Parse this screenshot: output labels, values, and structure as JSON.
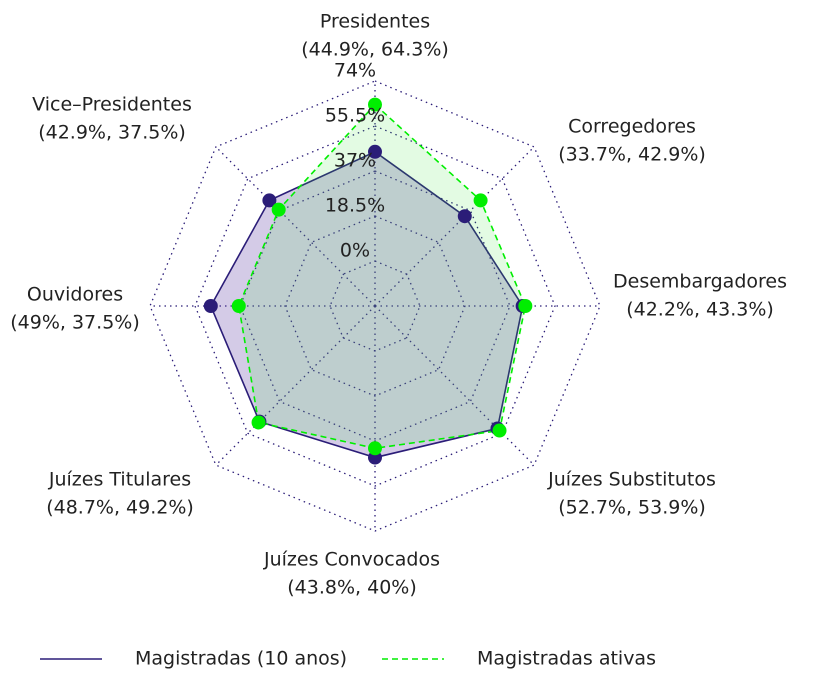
{
  "chart_data": {
    "type": "radar",
    "categories": [
      "Presidentes",
      "Corregedores",
      "Desembargadores",
      "Juízes Substitutos",
      "Juízes Convocados",
      "Juízes Titulares",
      "Ouvidores",
      "Vice–Presidentes"
    ],
    "point_labels": [
      "(44.9%, 64.3%)",
      "(33.7%, 42.9%)",
      "(42.2%, 43.3%)",
      "(52.7%, 53.9%)",
      "(43.8%, 40%)",
      "(48.7%, 49.2%)",
      "(49%, 37.5%)",
      "(42.9%, 37.5%)"
    ],
    "series": [
      {
        "name": "Magistradas (10 anos)",
        "color": "#2b1d78",
        "values": [
          44.9,
          33.7,
          42.2,
          52.7,
          43.8,
          48.7,
          49,
          42.9
        ]
      },
      {
        "name": "Magistradas ativas",
        "color": "#00ee00",
        "values": [
          64.3,
          42.9,
          43.3,
          53.9,
          40,
          49.2,
          37.5,
          37.5
        ]
      }
    ],
    "rlim": [
      -18.5,
      74
    ],
    "rticks": [
      {
        "value": 0,
        "label": "0%"
      },
      {
        "value": 18.5,
        "label": "18.5%"
      },
      {
        "value": 37,
        "label": "37%"
      },
      {
        "value": 55.5,
        "label": "55.5%"
      },
      {
        "value": 74,
        "label": "74%"
      }
    ],
    "grid": true
  }
}
